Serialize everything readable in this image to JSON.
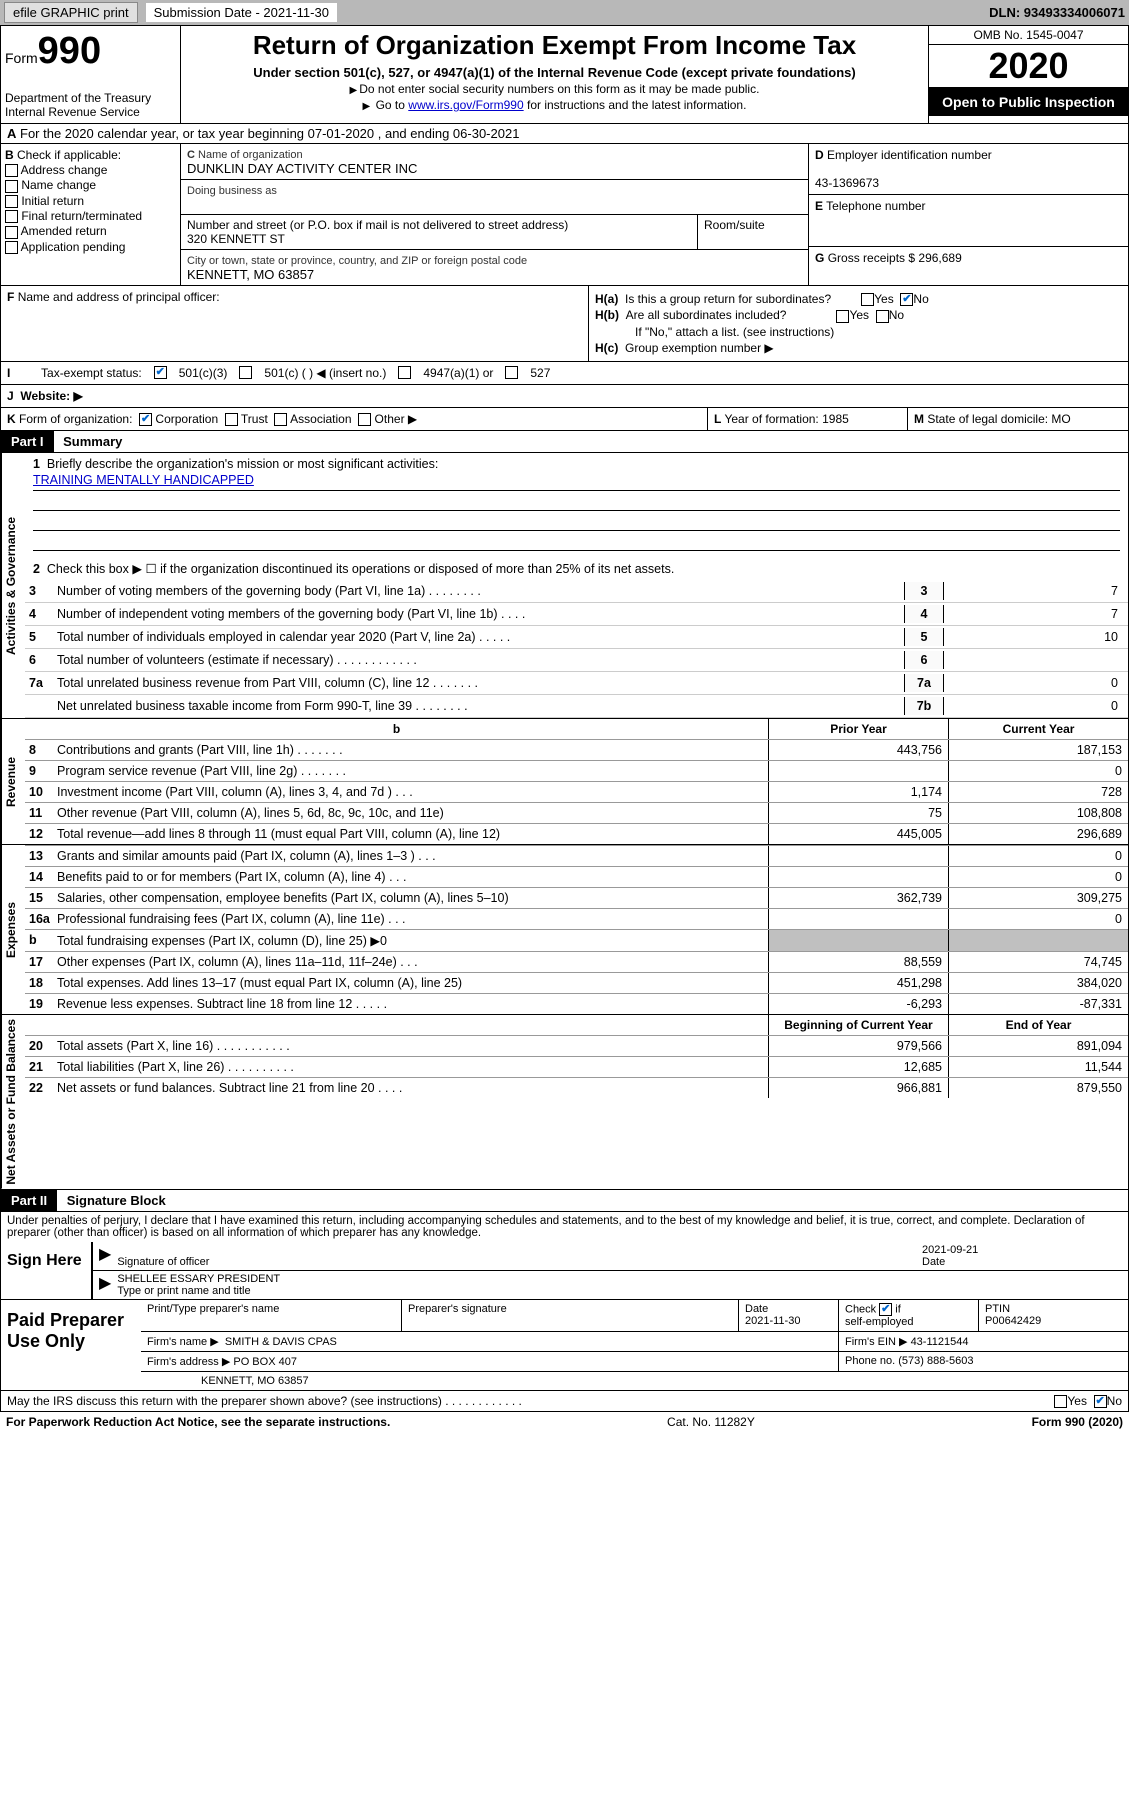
{
  "topbar": {
    "efile": "efile GRAPHIC print",
    "submission_label": "Submission Date - 2021-11-30",
    "dln": "DLN: 93493334006071"
  },
  "header": {
    "form_word": "Form",
    "form_num": "990",
    "dept": "Department of the Treasury\nInternal Revenue Service",
    "title": "Return of Organization Exempt From Income Tax",
    "sub": "Under section 501(c), 527, or 4947(a)(1) of the Internal Revenue Code (except private foundations)",
    "note1": "Do not enter social security numbers on this form as it may be made public.",
    "note2_pre": "Go to ",
    "note2_link": "www.irs.gov/Form990",
    "note2_post": " for instructions and the latest information.",
    "omb": "OMB No. 1545-0047",
    "year": "2020",
    "inspect": "Open to Public Inspection"
  },
  "rowA": "For the 2020 calendar year, or tax year beginning 07-01-2020   , and ending 06-30-2021",
  "B": {
    "label": "Check if applicable:",
    "items": [
      "Address change",
      "Name change",
      "Initial return",
      "Final return/terminated",
      "Amended return",
      "Application pending"
    ]
  },
  "C": {
    "name_label": "Name of organization",
    "name": "DUNKLIN DAY ACTIVITY CENTER INC",
    "dba_label": "Doing business as",
    "addr_label": "Number and street (or P.O. box if mail is not delivered to street address)",
    "addr": "320 KENNETT ST",
    "room_label": "Room/suite",
    "city_label": "City or town, state or province, country, and ZIP or foreign postal code",
    "city": "KENNETT, MO  63857"
  },
  "D": {
    "ein_label": "Employer identification number",
    "ein": "43-1369673",
    "tel_label": "Telephone number",
    "gross_label": "Gross receipts $",
    "gross": "296,689"
  },
  "F": {
    "label": "Name and address of principal officer:"
  },
  "H": {
    "a": "Is this a group return for subordinates?",
    "b": "Are all subordinates included?",
    "b_note": "If \"No,\" attach a list. (see instructions)",
    "c": "Group exemption number ▶",
    "yes": "Yes",
    "no": "No"
  },
  "I": {
    "label": "Tax-exempt status:",
    "opts": [
      "501(c)(3)",
      "501(c) (  ) ◀ (insert no.)",
      "4947(a)(1) or",
      "527"
    ]
  },
  "J": {
    "label": "Website: ▶"
  },
  "K": {
    "label": "Form of organization:",
    "opts": [
      "Corporation",
      "Trust",
      "Association",
      "Other ▶"
    ]
  },
  "L": {
    "label": "Year of formation:",
    "val": "1985"
  },
  "M": {
    "label": "State of legal domicile:",
    "val": "MO"
  },
  "part1": {
    "hdr": "Part I",
    "title": "Summary",
    "mission_label": "Briefly describe the organization's mission or most significant activities:",
    "mission": "TRAINING MENTALLY HANDICAPPED",
    "line2": "Check this box ▶ ☐  if the organization discontinued its operations or disposed of more than 25% of its net assets.",
    "sections": {
      "gov": "Activities & Governance",
      "rev": "Revenue",
      "exp": "Expenses",
      "net": "Net Assets or Fund Balances"
    },
    "gov_lines": [
      {
        "n": "3",
        "d": "Number of voting members of the governing body (Part VI, line 1a)  .   .   .   .   .   .   .   .",
        "box": "3",
        "v": "7"
      },
      {
        "n": "4",
        "d": "Number of independent voting members of the governing body (Part VI, line 1b)  .   .   .   .",
        "box": "4",
        "v": "7"
      },
      {
        "n": "5",
        "d": "Total number of individuals employed in calendar year 2020 (Part V, line 2a)  .   .   .   .   .",
        "box": "5",
        "v": "10"
      },
      {
        "n": "6",
        "d": "Total number of volunteers (estimate if necessary)  .   .   .   .   .   .   .   .   .   .   .   .",
        "box": "6",
        "v": ""
      },
      {
        "n": "7a",
        "d": "Total unrelated business revenue from Part VIII, column (C), line 12  .   .   .   .   .   .   .",
        "box": "7a",
        "v": "0"
      },
      {
        "n": "",
        "d": "Net unrelated business taxable income from Form 990-T, line 39  .   .   .   .   .   .   .   .",
        "box": "7b",
        "v": "0"
      }
    ],
    "col_hdrs": {
      "b": "b",
      "prior": "Prior Year",
      "current": "Current Year",
      "begin": "Beginning of Current Year",
      "end": "End of Year"
    },
    "rev_lines": [
      {
        "n": "8",
        "d": "Contributions and grants (Part VIII, line 1h)  .   .   .   .   .   .   .",
        "pv": "443,756",
        "cv": "187,153"
      },
      {
        "n": "9",
        "d": "Program service revenue (Part VIII, line 2g)  .   .   .   .   .   .   .",
        "pv": "",
        "cv": "0"
      },
      {
        "n": "10",
        "d": "Investment income (Part VIII, column (A), lines 3, 4, and 7d )  .   .   .",
        "pv": "1,174",
        "cv": "728"
      },
      {
        "n": "11",
        "d": "Other revenue (Part VIII, column (A), lines 5, 6d, 8c, 9c, 10c, and 11e)",
        "pv": "75",
        "cv": "108,808"
      },
      {
        "n": "12",
        "d": "Total revenue—add lines 8 through 11 (must equal Part VIII, column (A), line 12)",
        "pv": "445,005",
        "cv": "296,689"
      }
    ],
    "exp_lines": [
      {
        "n": "13",
        "d": "Grants and similar amounts paid (Part IX, column (A), lines 1–3 )  .   .   .",
        "pv": "",
        "cv": "0"
      },
      {
        "n": "14",
        "d": "Benefits paid to or for members (Part IX, column (A), line 4)  .   .   .",
        "pv": "",
        "cv": "0"
      },
      {
        "n": "15",
        "d": "Salaries, other compensation, employee benefits (Part IX, column (A), lines 5–10)",
        "pv": "362,739",
        "cv": "309,275"
      },
      {
        "n": "16a",
        "d": "Professional fundraising fees (Part IX, column (A), line 11e)  .   .   .",
        "pv": "",
        "cv": "0"
      },
      {
        "n": "b",
        "d": "Total fundraising expenses (Part IX, column (D), line 25) ▶0",
        "pv": "shaded",
        "cv": "shaded"
      },
      {
        "n": "17",
        "d": "Other expenses (Part IX, column (A), lines 11a–11d, 11f–24e)  .   .   .",
        "pv": "88,559",
        "cv": "74,745"
      },
      {
        "n": "18",
        "d": "Total expenses. Add lines 13–17 (must equal Part IX, column (A), line 25)",
        "pv": "451,298",
        "cv": "384,020"
      },
      {
        "n": "19",
        "d": "Revenue less expenses. Subtract line 18 from line 12  .   .   .   .   .",
        "pv": "-6,293",
        "cv": "-87,331"
      }
    ],
    "net_lines": [
      {
        "n": "20",
        "d": "Total assets (Part X, line 16)  .   .   .   .   .   .   .   .   .   .   .",
        "pv": "979,566",
        "cv": "891,094"
      },
      {
        "n": "21",
        "d": "Total liabilities (Part X, line 26)  .   .   .   .   .   .   .   .   .   .",
        "pv": "12,685",
        "cv": "11,544"
      },
      {
        "n": "22",
        "d": "Net assets or fund balances. Subtract line 21 from line 20  .   .   .   .",
        "pv": "966,881",
        "cv": "879,550"
      }
    ]
  },
  "part2": {
    "hdr": "Part II",
    "title": "Signature Block",
    "decl": "Under penalties of perjury, I declare that I have examined this return, including accompanying schedules and statements, and to the best of my knowledge and belief, it is true, correct, and complete. Declaration of preparer (other than officer) is based on all information of which preparer has any knowledge.",
    "sign_here": "Sign Here",
    "sig_officer": "Signature of officer",
    "sig_date": "2021-09-21",
    "date_label": "Date",
    "officer": "SHELLEE ESSARY PRESIDENT",
    "type_label": "Type or print name and title",
    "paid": "Paid Preparer Use Only",
    "prep_name_label": "Print/Type preparer's name",
    "prep_sig_label": "Preparer's signature",
    "prep_date": "2021-11-30",
    "check_self": "Check ☑ if self-employed",
    "ptin_label": "PTIN",
    "ptin": "P00642429",
    "firm_name_label": "Firm's name   ▶",
    "firm_name": "SMITH & DAVIS CPAS",
    "firm_ein_label": "Firm's EIN ▶",
    "firm_ein": "43-1121544",
    "firm_addr_label": "Firm's address ▶",
    "firm_addr": "PO BOX 407",
    "firm_city": "KENNETT, MO  63857",
    "phone_label": "Phone no.",
    "phone": "(573) 888-5603",
    "discuss": "May the IRS discuss this return with the preparer shown above? (see instructions)  .   .   .   .   .   .   .   .   .   .   .   ."
  },
  "footer": {
    "pra": "For Paperwork Reduction Act Notice, see the separate instructions.",
    "cat": "Cat. No. 11282Y",
    "form": "Form 990 (2020)"
  },
  "colors": {
    "link": "#0000cc",
    "topbar_bg": "#b8b8b8",
    "shaded": "#c0c0c0"
  }
}
